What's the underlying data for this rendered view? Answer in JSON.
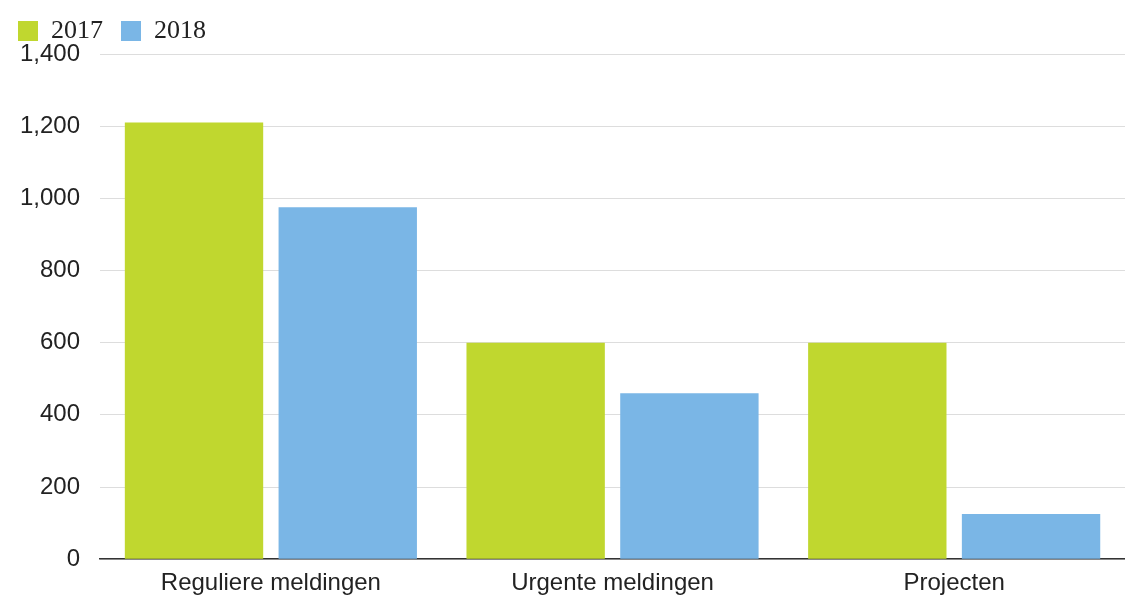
{
  "chart_data": {
    "type": "bar",
    "categories": [
      "Reguliere meldingen",
      "Urgente meldingen",
      "Projecten"
    ],
    "series": [
      {
        "name": "2017",
        "color": "#c0d72f",
        "values": [
          1210,
          600,
          600
        ]
      },
      {
        "name": "2018",
        "color": "#7ab6e6",
        "values": [
          975,
          460,
          125
        ]
      }
    ],
    "ylim": [
      0,
      1400
    ],
    "yticks": [
      {
        "value": 0,
        "label": "0"
      },
      {
        "value": 200,
        "label": "200"
      },
      {
        "value": 400,
        "label": "400"
      },
      {
        "value": 600,
        "label": "600"
      },
      {
        "value": 800,
        "label": "800"
      },
      {
        "value": 1000,
        "label": "1,000"
      },
      {
        "value": 1200,
        "label": "1,200"
      },
      {
        "value": 1400,
        "label": "1,400"
      }
    ],
    "grid": "y",
    "legend": "top left"
  }
}
